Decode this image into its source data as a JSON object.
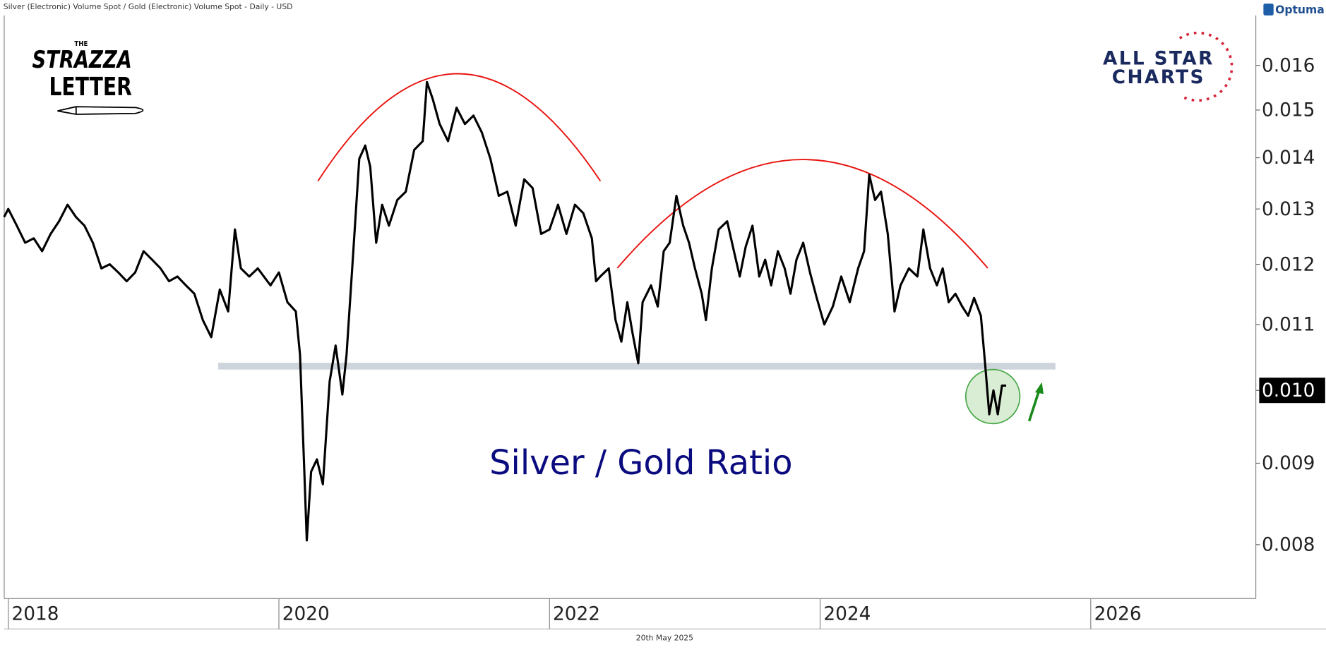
{
  "header": "Silver (Electronic) Volume Spot / Gold (Electronic) Volume Spot - Daily - USD",
  "footer": "20th May 2025",
  "brand": "Optuma",
  "logo_left": {
    "top": "THE",
    "line1": "STRAZZA",
    "line2": "LETTER"
  },
  "logo_right": {
    "line1": "ALL STAR",
    "line2": "CHARTS"
  },
  "chart_data": {
    "type": "line",
    "log_y": true,
    "grid": false,
    "xlim": [
      2017.97,
      2027.22
    ],
    "xticks": [
      2018,
      2020,
      2022,
      2024,
      2026
    ],
    "ylim": [
      0.0074,
      0.0172
    ],
    "yticks": [
      0.008,
      0.009,
      {
        "value": 0.01,
        "label": "0.010"
      },
      0.011,
      0.012,
      0.013,
      0.014,
      0.015,
      0.016
    ],
    "x": [
      2017.969,
      2018.0,
      2018.063,
      2018.125,
      2018.188,
      2018.25,
      2018.313,
      2018.375,
      2018.438,
      2018.5,
      2018.563,
      2018.625,
      2018.688,
      2018.75,
      2018.813,
      2018.875,
      2018.938,
      2019.0,
      2019.063,
      2019.125,
      2019.188,
      2019.25,
      2019.313,
      2019.375,
      2019.438,
      2019.5,
      2019.563,
      2019.625,
      2019.675,
      2019.719,
      2019.781,
      2019.844,
      2019.938,
      2020.0,
      2020.063,
      2020.125,
      2020.156,
      2020.188,
      2020.206,
      2020.238,
      2020.281,
      2020.325,
      2020.375,
      2020.419,
      2020.469,
      2020.5,
      2020.55,
      2020.594,
      2020.638,
      2020.675,
      2020.719,
      2020.763,
      2020.813,
      2020.875,
      2020.938,
      2021.0,
      2021.063,
      2021.094,
      2021.138,
      2021.188,
      2021.25,
      2021.313,
      2021.375,
      2021.438,
      2021.5,
      2021.563,
      2021.625,
      2021.688,
      2021.75,
      2021.813,
      2021.875,
      2021.938,
      2022.0,
      2022.063,
      2022.125,
      2022.188,
      2022.25,
      2022.313,
      2022.344,
      2022.375,
      2022.438,
      2022.488,
      2022.531,
      2022.575,
      2022.613,
      2022.656,
      2022.688,
      2022.75,
      2022.8,
      2022.844,
      2022.888,
      2022.938,
      2022.988,
      2023.031,
      2023.075,
      2023.125,
      2023.156,
      2023.2,
      2023.25,
      2023.313,
      2023.363,
      2023.406,
      2023.45,
      2023.5,
      2023.55,
      2023.594,
      2023.638,
      2023.688,
      2023.738,
      2023.781,
      2023.825,
      2023.875,
      2023.925,
      2023.975,
      2024.031,
      2024.094,
      2024.156,
      2024.219,
      2024.281,
      2024.325,
      2024.363,
      2024.406,
      2024.45,
      2024.5,
      2024.55,
      2024.594,
      2024.656,
      2024.719,
      2024.763,
      2024.813,
      2024.863,
      2024.906,
      2024.95,
      2025.0,
      2025.05,
      2025.094,
      2025.138,
      2025.188,
      2025.219,
      2025.25,
      2025.281,
      2025.313,
      2025.344,
      2025.375
    ],
    "series": [
      {
        "name": "Silver / Gold Ratio",
        "color": "#000000",
        "values": [
          0.01285,
          0.013,
          0.01269,
          0.01238,
          0.01246,
          0.01223,
          0.01254,
          0.01277,
          0.01308,
          0.01285,
          0.01269,
          0.01238,
          0.01193,
          0.012,
          0.01186,
          0.01171,
          0.01186,
          0.01223,
          0.01208,
          0.01193,
          0.01171,
          0.01179,
          0.01164,
          0.0115,
          0.01107,
          0.0108,
          0.01157,
          0.01121,
          0.01262,
          0.01193,
          0.01179,
          0.01193,
          0.01164,
          0.01186,
          0.01136,
          0.01121,
          0.01053,
          0.00889,
          0.00805,
          0.00889,
          0.00905,
          0.00873,
          0.01013,
          0.01067,
          0.00994,
          0.01053,
          0.01223,
          0.01398,
          0.01425,
          0.01382,
          0.01238,
          0.01308,
          0.01269,
          0.01317,
          0.01333,
          0.01416,
          0.01434,
          0.01562,
          0.01523,
          0.0147,
          0.01434,
          0.01505,
          0.0147,
          0.01488,
          0.01452,
          0.01398,
          0.01325,
          0.01333,
          0.01269,
          0.01357,
          0.0134,
          0.01254,
          0.01262,
          0.01308,
          0.01254,
          0.01308,
          0.01292,
          0.01246,
          0.01171,
          0.01179,
          0.01193,
          0.01107,
          0.01073,
          0.01136,
          0.01087,
          0.0104,
          0.01136,
          0.01164,
          0.01129,
          0.01223,
          0.01238,
          0.01325,
          0.01269,
          0.01238,
          0.01193,
          0.0115,
          0.01107,
          0.01193,
          0.01262,
          0.01277,
          0.01223,
          0.01179,
          0.01231,
          0.01269,
          0.01179,
          0.01208,
          0.01164,
          0.01223,
          0.01193,
          0.0115,
          0.01208,
          0.01238,
          0.01186,
          0.01143,
          0.011,
          0.01129,
          0.01179,
          0.01136,
          0.01193,
          0.01223,
          0.01366,
          0.01317,
          0.01333,
          0.01254,
          0.01121,
          0.01164,
          0.01193,
          0.01179,
          0.01262,
          0.01193,
          0.01164,
          0.01193,
          0.01136,
          0.0115,
          0.01129,
          0.01114,
          0.01143,
          0.01114,
          0.0104,
          0.00966,
          0.01,
          0.00966,
          0.01007,
          0.01007
        ]
      }
    ]
  }
}
